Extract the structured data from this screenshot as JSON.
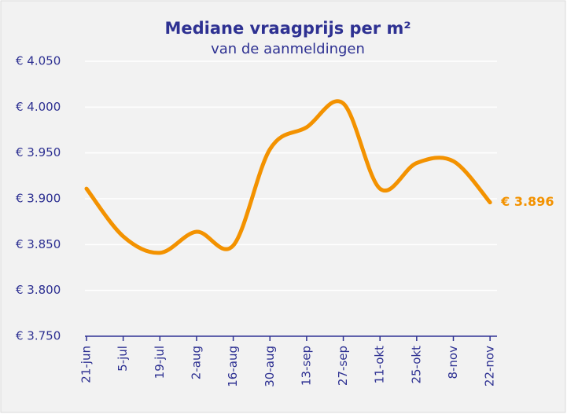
{
  "chart_data": {
    "type": "line",
    "title": "Mediane vraagprijs per m²",
    "subtitle": "van de aanmeldingen",
    "categories": [
      "21-jun",
      "5-jul",
      "19-jul",
      "2-aug",
      "16-aug",
      "30-aug",
      "13-sep",
      "27-sep",
      "11-okt",
      "25-okt",
      "8-nov",
      "22-nov"
    ],
    "series": [
      {
        "name": "Mediane vraagprijs per m²",
        "color": "#f39200",
        "values": [
          3911,
          3859,
          3841,
          3864,
          3849,
          3954,
          3978,
          4004,
          3911,
          3939,
          3941,
          3896
        ],
        "value_labels": [
          null,
          null,
          null,
          null,
          null,
          null,
          null,
          null,
          null,
          null,
          null,
          "€ 3.896"
        ]
      }
    ],
    "ylim": [
      3750,
      4050
    ],
    "yticks": [
      {
        "value": 3750,
        "label": "€ 3.750"
      },
      {
        "value": 3800,
        "label": "€ 3.800"
      },
      {
        "value": 3850,
        "label": "€ 3.850"
      },
      {
        "value": 3900,
        "label": "€ 3.900"
      },
      {
        "value": 3950,
        "label": "€ 3.950"
      },
      {
        "value": 4000,
        "label": "€ 4.000"
      },
      {
        "value": 4050,
        "label": "€ 4.050"
      }
    ],
    "grid": true,
    "smooth": true
  }
}
